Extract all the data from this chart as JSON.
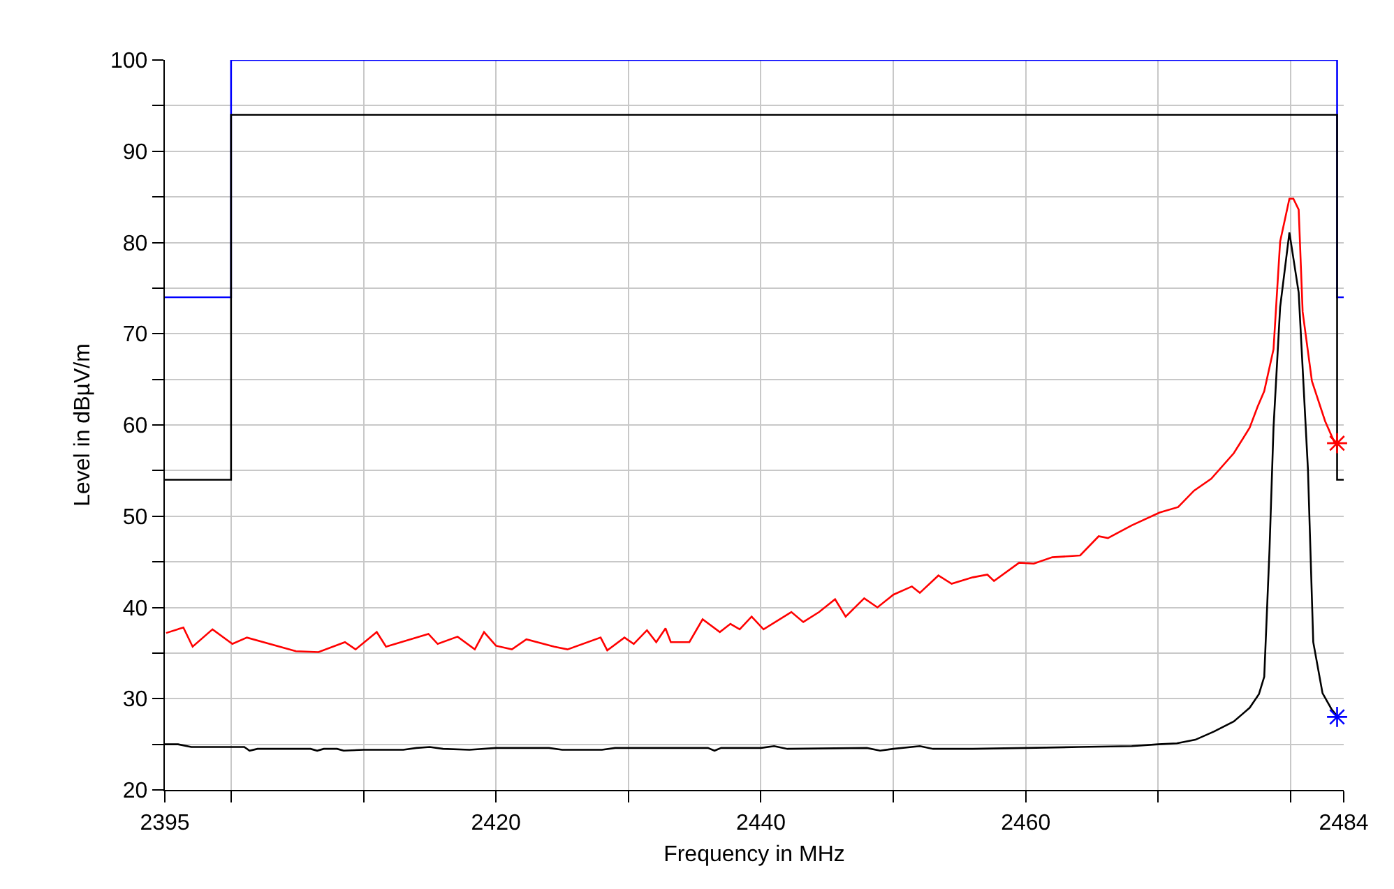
{
  "chart_data": {
    "type": "line",
    "xlabel": "Frequency in MHz",
    "ylabel": "Level in dBµV/m",
    "xlim": [
      2395,
      2484
    ],
    "ylim": [
      20,
      100
    ],
    "xticks": [
      2395,
      {
        "value": 2400,
        "label": null
      },
      {
        "value": 2410,
        "label": null
      },
      2420,
      {
        "value": 2430,
        "label": null
      },
      2440,
      {
        "value": 2450,
        "label": null
      },
      2460,
      {
        "value": 2470,
        "label": null
      },
      {
        "value": 2480,
        "label": null
      },
      2484
    ],
    "yticks": [
      20,
      {
        "value": 25,
        "label": null
      },
      30,
      {
        "value": 35,
        "label": null
      },
      40,
      {
        "value": 45,
        "label": null
      },
      50,
      {
        "value": 55,
        "label": null
      },
      60,
      {
        "value": 65,
        "label": null
      },
      70,
      {
        "value": 75,
        "label": null
      },
      80,
      {
        "value": 85,
        "label": null
      },
      90,
      {
        "value": 95,
        "label": null
      },
      100
    ],
    "grid": true,
    "series": [
      {
        "type": "step",
        "color": "#0000ff",
        "x": [
          2395,
          2400,
          2483.5,
          2484
        ],
        "values": [
          74,
          100,
          74,
          74
        ]
      },
      {
        "type": "step",
        "color": "#000000",
        "x": [
          2395,
          2400,
          2483.5,
          2484
        ],
        "values": [
          54,
          94,
          54,
          54
        ]
      },
      {
        "color": "#ff0000",
        "x": [
          2395.1,
          2396.4,
          2397.1,
          2398.6,
          2400.1,
          2401.2,
          2404.9,
          2406.6,
          2408.6,
          2409.4,
          2411.0,
          2411.7,
          2414.9,
          2415.6,
          2417.1,
          2418.4,
          2419.1,
          2420.0,
          2421.2,
          2422.3,
          2424.4,
          2425.4,
          2427.9,
          2428.4,
          2429.7,
          2430.4,
          2431.4,
          2432.1,
          2432.8,
          2433.2,
          2434.6,
          2435.6,
          2436.9,
          2437.7,
          2438.4,
          2439.3,
          2440.2,
          2442.3,
          2443.2,
          2444.4,
          2445.6,
          2446.4,
          2447.8,
          2448.8,
          2450.0,
          2451.4,
          2452.0,
          2453.4,
          2454.4,
          2456.0,
          2457.1,
          2457.6,
          2459.5,
          2460.6,
          2462.0,
          2464.1,
          2465.5,
          2466.2,
          2468.0,
          2470.1,
          2471.5,
          2472.7,
          2474.0,
          2475.7,
          2476.9,
          2477.5,
          2478.0,
          2478.7,
          2479.2,
          2479.9,
          2480.2,
          2480.6,
          2480.9,
          2481.6,
          2482.6,
          2483.3,
          2483.5
        ],
        "values": [
          37.2,
          37.8,
          35.7,
          37.6,
          36.0,
          36.7,
          35.2,
          35.1,
          36.2,
          35.4,
          37.3,
          35.7,
          37.1,
          36.0,
          36.8,
          35.4,
          37.3,
          35.8,
          35.4,
          36.5,
          35.7,
          35.4,
          36.7,
          35.3,
          36.7,
          36.0,
          37.5,
          36.2,
          37.7,
          36.2,
          36.2,
          38.7,
          37.3,
          38.2,
          37.6,
          39.0,
          37.6,
          39.5,
          38.4,
          39.5,
          40.9,
          39.0,
          41.0,
          40.0,
          41.4,
          42.3,
          41.6,
          43.5,
          42.6,
          43.3,
          43.6,
          42.9,
          44.9,
          44.8,
          45.5,
          45.7,
          47.8,
          47.6,
          49.0,
          50.4,
          51.0,
          52.8,
          54.1,
          56.9,
          59.7,
          62.0,
          63.7,
          68.3,
          80.1,
          84.8,
          84.8,
          83.6,
          72.4,
          64.8,
          60.4,
          58.1,
          58.0
        ]
      },
      {
        "color": "#000000",
        "x": [
          2395,
          2396,
          2397,
          2400,
          2401,
          2401.4,
          2402,
          2406,
          2406.5,
          2407,
          2408,
          2408.5,
          2410,
          2413,
          2414,
          2415,
          2416,
          2418,
          2420,
          2424,
          2425,
          2428,
          2429,
          2436,
          2436.5,
          2437,
          2440,
          2441,
          2442,
          2448,
          2449,
          2450,
          2452,
          2453,
          2456,
          2460,
          2464,
          2468,
          2470,
          2471.4,
          2472.8,
          2474.2,
          2475.7,
          2476.9,
          2477.6,
          2478.0,
          2478.4,
          2478.7,
          2479.2,
          2479.9,
          2480.6,
          2481.3,
          2481.7,
          2482.4,
          2483.1,
          2483.5
        ],
        "values": [
          25.0,
          25.0,
          24.7,
          24.7,
          24.7,
          24.3,
          24.5,
          24.5,
          24.3,
          24.5,
          24.5,
          24.3,
          24.4,
          24.4,
          24.6,
          24.7,
          24.5,
          24.4,
          24.6,
          24.6,
          24.4,
          24.4,
          24.6,
          24.6,
          24.3,
          24.6,
          24.6,
          24.8,
          24.5,
          24.6,
          24.3,
          24.5,
          24.8,
          24.5,
          24.5,
          24.6,
          24.7,
          24.8,
          25.0,
          25.1,
          25.5,
          26.4,
          27.5,
          29.0,
          30.5,
          32.4,
          46.4,
          59.7,
          72.9,
          81.1,
          74.5,
          55.1,
          36.2,
          30.6,
          28.8,
          28.1
        ]
      },
      {
        "type": "scatter",
        "marker": "cross",
        "color": "#ff0000",
        "x": [
          2483.5
        ],
        "values": [
          58
        ]
      },
      {
        "type": "scatter",
        "marker": "cross",
        "color": "#0000ff",
        "x": [
          2483.5
        ],
        "values": [
          28
        ]
      }
    ]
  }
}
